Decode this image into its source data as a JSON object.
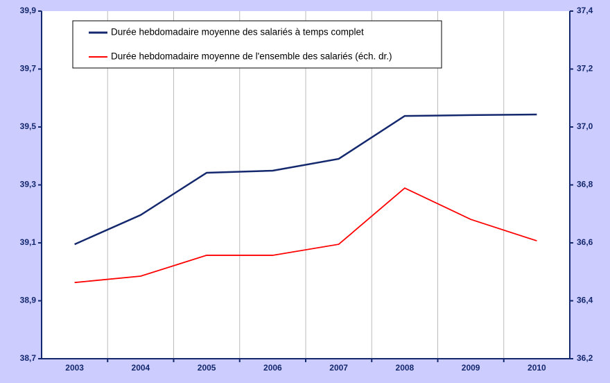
{
  "chart_data": {
    "type": "line",
    "categories": [
      "2003",
      "2004",
      "2005",
      "2006",
      "2007",
      "2008",
      "2009",
      "2010"
    ],
    "series": [
      {
        "name": "Durée hebdomadaire moyenne des salariés à temps complet",
        "color": "#14286e",
        "values": [
          39.095,
          39.196,
          39.342,
          39.349,
          39.39,
          39.538,
          39.541,
          39.543
        ]
      },
      {
        "name": "Durée hebdomadaire moyenne de l'ensemble des salariés (éch. dr.)",
        "color": "#ff0000",
        "axis": "y2",
        "values": [
          36.463,
          36.485,
          36.557,
          36.557,
          36.595,
          36.789,
          36.681,
          36.607
        ]
      }
    ],
    "ylim": [
      38.7,
      39.9
    ],
    "yticks": [
      {
        "value": 38.7,
        "label": "38,7"
      },
      {
        "value": 38.9,
        "label": "38,9"
      },
      {
        "value": 39.1,
        "label": "39,1"
      },
      {
        "value": 39.3,
        "label": "39,3"
      },
      {
        "value": 39.5,
        "label": "39,5"
      },
      {
        "value": 39.7,
        "label": "39,7"
      },
      {
        "value": 39.9,
        "label": "39,9"
      }
    ],
    "y2lim": [
      36.2,
      37.4
    ],
    "y2ticks": [
      {
        "value": 36.2,
        "label": "36,2"
      },
      {
        "value": 36.4,
        "label": "36,4"
      },
      {
        "value": 36.6,
        "label": "36,6"
      },
      {
        "value": 36.8,
        "label": "36,8"
      },
      {
        "value": 37.0,
        "label": "37,0"
      },
      {
        "value": 37.2,
        "label": "37,2"
      },
      {
        "value": 37.4,
        "label": "37,4"
      }
    ],
    "grid": true,
    "legend": "upper left"
  }
}
